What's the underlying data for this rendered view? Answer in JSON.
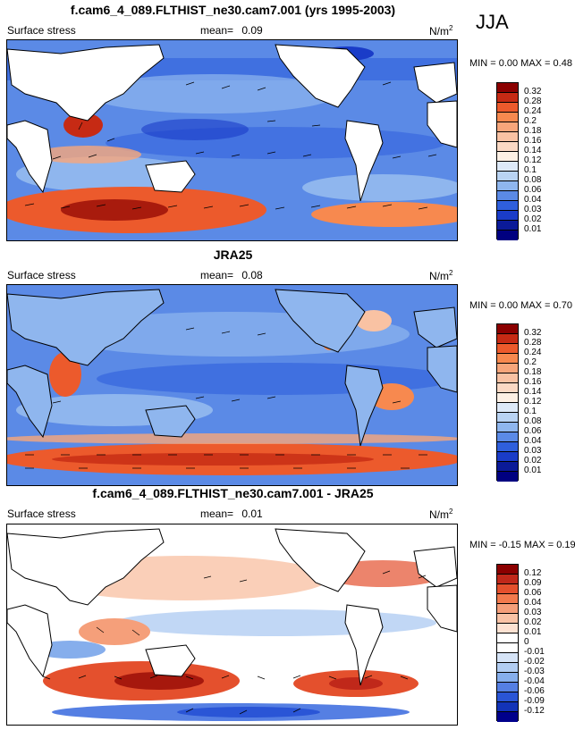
{
  "season": "JJA",
  "panels": [
    {
      "title": "f.cam6_4_089.FLTHIST_ne30.cam7.001 (yrs 1995-2003)",
      "variable": "Surface stress",
      "mean_label": "mean=",
      "mean_value": "0.09",
      "units": "N/m",
      "units_exp": "2",
      "minmax": "MIN =   0.00 MAX =   0.48",
      "colorbar": {
        "labels": [
          "0.32",
          "0.28",
          "0.24",
          "0.2",
          "0.18",
          "0.16",
          "0.14",
          "0.12",
          "0.1",
          "0.08",
          "0.06",
          "0.04",
          "0.03",
          "0.02",
          "0.01"
        ],
        "colors": [
          "#8b0000",
          "#c62a14",
          "#ec5a2c",
          "#f7894f",
          "#f7a67b",
          "#f9c2a3",
          "#fbd9c4",
          "#fdf0e4",
          "#dde9f8",
          "#b9d3f3",
          "#8fb6ee",
          "#5b8ae6",
          "#2f5fdc",
          "#1a3cc8",
          "#0b1a98",
          "#000080"
        ]
      }
    },
    {
      "title": "JRA25",
      "variable": "Surface stress",
      "mean_label": "mean=",
      "mean_value": "0.08",
      "units": "N/m",
      "units_exp": "2",
      "minmax": "MIN =   0.00 MAX =   0.70",
      "colorbar": {
        "labels": [
          "0.32",
          "0.28",
          "0.24",
          "0.2",
          "0.18",
          "0.16",
          "0.14",
          "0.12",
          "0.1",
          "0.08",
          "0.06",
          "0.04",
          "0.03",
          "0.02",
          "0.01"
        ],
        "colors": [
          "#8b0000",
          "#c62a14",
          "#ec5a2c",
          "#f7894f",
          "#f7a67b",
          "#f9c2a3",
          "#fbd9c4",
          "#fdf0e4",
          "#dde9f8",
          "#b9d3f3",
          "#8fb6ee",
          "#5b8ae6",
          "#2f5fdc",
          "#1a3cc8",
          "#0b1a98",
          "#000080"
        ]
      }
    },
    {
      "title": "f.cam6_4_089.FLTHIST_ne30.cam7.001 - JRA25",
      "variable": "Surface stress",
      "mean_label": "mean=",
      "mean_value": "0.01",
      "units": "N/m",
      "units_exp": "2",
      "minmax": "MIN =  -0.15 MAX =   0.19",
      "colorbar": {
        "labels": [
          "0.12",
          "0.09",
          "0.06",
          "0.04",
          "0.03",
          "0.02",
          "0.01",
          "0",
          "-0.01",
          "-0.02",
          "-0.03",
          "-0.04",
          "-0.06",
          "-0.09",
          "-0.12"
        ],
        "colors": [
          "#8b0000",
          "#c0281a",
          "#e4502d",
          "#f27a4d",
          "#f59f7a",
          "#f9c3a6",
          "#fde2d2",
          "#ffffff",
          "#ffffff",
          "#d6e4f7",
          "#b2cdf2",
          "#86aeec",
          "#557fe3",
          "#2a55d6",
          "#1233b8",
          "#00008b"
        ]
      }
    }
  ]
}
